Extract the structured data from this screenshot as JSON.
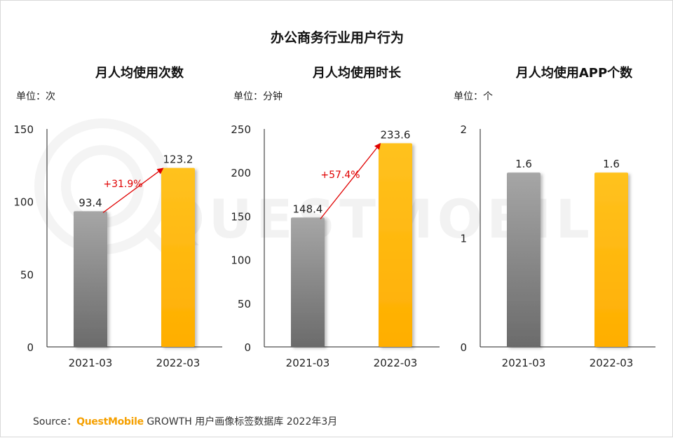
{
  "title": "办公商务行业用户行为",
  "watermark": "QUESTMOBILE",
  "colors": {
    "bar_2021": "#7a7a7a",
    "bar_2022": "#ffb400",
    "growth": "#e00000",
    "axis": "#222222"
  },
  "source": {
    "prefix": "Source：",
    "brand": "QuestMobile",
    "rest": "GROWTH 用户画像标签数据库 2022年3月"
  },
  "chart_data": [
    {
      "type": "bar",
      "title": "月人均使用次数",
      "unit": "单位：次",
      "categories": [
        "2021-03",
        "2022-03"
      ],
      "values": [
        93.4,
        123.2
      ],
      "value_labels": [
        "93.4",
        "123.2"
      ],
      "ylim": [
        0,
        150
      ],
      "yticks": [
        0,
        50,
        100,
        150
      ],
      "growth_label": "+31.9%"
    },
    {
      "type": "bar",
      "title": "月人均使用时长",
      "unit": "单位：分钟",
      "categories": [
        "2021-03",
        "2022-03"
      ],
      "values": [
        148.4,
        233.6
      ],
      "value_labels": [
        "148.4",
        "233.6"
      ],
      "ylim": [
        0,
        250
      ],
      "yticks": [
        0,
        50,
        100,
        150,
        200,
        250
      ],
      "growth_label": "+57.4%"
    },
    {
      "type": "bar",
      "title": "月人均使用APP个数",
      "unit": "单位：个",
      "categories": [
        "2021-03",
        "2022-03"
      ],
      "values": [
        1.6,
        1.6
      ],
      "value_labels": [
        "1.6",
        "1.6"
      ],
      "ylim": [
        0,
        2
      ],
      "yticks": [
        0,
        1,
        2
      ],
      "growth_label": ""
    }
  ]
}
